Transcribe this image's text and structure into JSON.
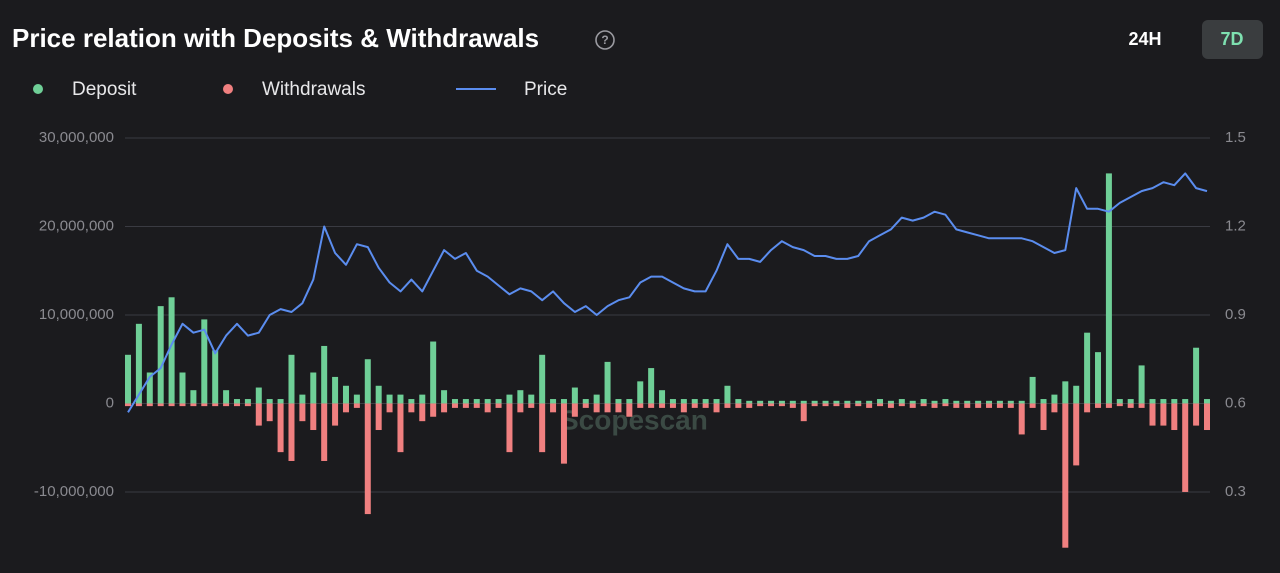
{
  "chart_data": {
    "type": "bar-line",
    "title": "Price relation with Deposits & Withdrawals",
    "buttons": [
      "24H",
      "7D"
    ],
    "watermark": "Scopescan",
    "ylim": [
      -19000000,
      30000000
    ],
    "yticks": [
      {
        "value": 30000000,
        "label": "30,000,000"
      },
      {
        "value": 20000000,
        "label": "20,000,000"
      },
      {
        "value": 10000000,
        "label": "10,000,000"
      },
      0,
      {
        "value": -10000000,
        "label": "-10,000,000"
      }
    ],
    "y2lim": [
      0.03,
      1.5
    ],
    "y2ticks": [
      1.5,
      1.2,
      0.9,
      0.6,
      0.3
    ],
    "grid": true,
    "series": [
      {
        "name": "Deposit",
        "color": "#6fcf97",
        "kind": "bar",
        "values": [
          5500000,
          9000000,
          3500000,
          11000000,
          12000000,
          3500000,
          1500000,
          9500000,
          6000000,
          1500000,
          500000,
          500000,
          1800000,
          500000,
          500000,
          5500000,
          1000000,
          3500000,
          6500000,
          3000000,
          2000000,
          1000000,
          5000000,
          2000000,
          1000000,
          1000000,
          500000,
          1000000,
          7000000,
          1500000,
          500000,
          500000,
          500000,
          500000,
          500000,
          1000000,
          1500000,
          1000000,
          5500000,
          500000,
          500000,
          1800000,
          500000,
          1000000,
          4700000,
          500000,
          500000,
          2500000,
          4000000,
          1500000,
          500000,
          500000,
          500000,
          500000,
          500000,
          2000000,
          500000,
          300000,
          300000,
          300000,
          300000,
          300000,
          300000,
          300000,
          300000,
          300000,
          300000,
          300000,
          300000,
          500000,
          300000,
          500000,
          300000,
          500000,
          300000,
          500000,
          300000,
          300000,
          300000,
          300000,
          300000,
          300000,
          300000,
          3000000,
          500000,
          1000000,
          2500000,
          2000000,
          8000000,
          5800000,
          26000000,
          500000,
          500000,
          4300000,
          500000,
          500000,
          500000,
          500000,
          6300000,
          500000
        ]
      },
      {
        "name": "Withdrawals",
        "color": "#f08080",
        "kind": "bar",
        "values": [
          -300000,
          -300000,
          -300000,
          -300000,
          -300000,
          -300000,
          -300000,
          -300000,
          -300000,
          -300000,
          -300000,
          -300000,
          -2500000,
          -2000000,
          -5500000,
          -6500000,
          -2000000,
          -3000000,
          -6500000,
          -2500000,
          -1000000,
          -500000,
          -12500000,
          -3000000,
          -1000000,
          -5500000,
          -1000000,
          -2000000,
          -1500000,
          -1000000,
          -500000,
          -500000,
          -500000,
          -1000000,
          -500000,
          -5500000,
          -1000000,
          -500000,
          -5500000,
          -1000000,
          -6800000,
          -1500000,
          -500000,
          -1000000,
          -1000000,
          -1000000,
          -1500000,
          -500000,
          -500000,
          -500000,
          -500000,
          -1000000,
          -500000,
          -500000,
          -1000000,
          -500000,
          -500000,
          -500000,
          -300000,
          -300000,
          -300000,
          -500000,
          -2000000,
          -300000,
          -300000,
          -300000,
          -500000,
          -300000,
          -500000,
          -300000,
          -500000,
          -300000,
          -500000,
          -300000,
          -500000,
          -300000,
          -500000,
          -500000,
          -500000,
          -500000,
          -500000,
          -500000,
          -3500000,
          -500000,
          -3000000,
          -1000000,
          -16300000,
          -7000000,
          -1000000,
          -500000,
          -500000,
          -300000,
          -500000,
          -500000,
          -2500000,
          -2500000,
          -3000000,
          -10000000,
          -2500000,
          -3000000
        ]
      },
      {
        "name": "Price",
        "color": "#5b8def",
        "kind": "line",
        "axis": "y2",
        "values": [
          0.57,
          0.63,
          0.69,
          0.72,
          0.8,
          0.87,
          0.84,
          0.85,
          0.77,
          0.83,
          0.87,
          0.83,
          0.84,
          0.9,
          0.92,
          0.91,
          0.94,
          1.02,
          1.2,
          1.11,
          1.07,
          1.14,
          1.13,
          1.06,
          1.01,
          0.98,
          1.02,
          0.98,
          1.05,
          1.12,
          1.09,
          1.11,
          1.05,
          1.03,
          1.0,
          0.97,
          0.99,
          0.98,
          0.95,
          0.98,
          0.94,
          0.91,
          0.93,
          0.9,
          0.93,
          0.95,
          0.96,
          1.01,
          1.03,
          1.03,
          1.01,
          0.99,
          0.98,
          0.98,
          1.05,
          1.14,
          1.09,
          1.09,
          1.08,
          1.12,
          1.15,
          1.13,
          1.12,
          1.1,
          1.1,
          1.09,
          1.09,
          1.1,
          1.15,
          1.17,
          1.19,
          1.23,
          1.22,
          1.23,
          1.25,
          1.24,
          1.19,
          1.18,
          1.17,
          1.16,
          1.16,
          1.16,
          1.16,
          1.15,
          1.13,
          1.11,
          1.12,
          1.33,
          1.26,
          1.26,
          1.25,
          1.28,
          1.3,
          1.32,
          1.33,
          1.35,
          1.34,
          1.38,
          1.33,
          1.32
        ]
      }
    ]
  }
}
